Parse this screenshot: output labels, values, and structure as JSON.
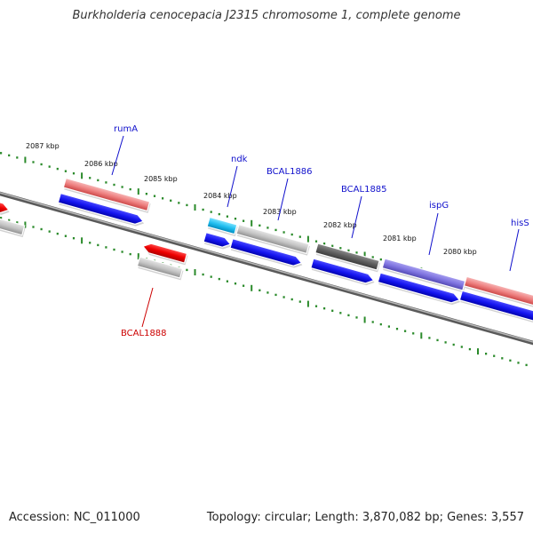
{
  "title": "Burkholderia cenocepacia J2315 chromosome 1, complete genome",
  "footer": {
    "accession": "Accession: NC_011000",
    "info": "Topology: circular; Length: 3,870,082 bp; Genes: 3,557"
  },
  "colors": {
    "backbone": "#808080",
    "ticks": "#2a8a2a",
    "forward_label": "#1010cc",
    "reverse_label": "#cc0000"
  },
  "kbp_labels": [
    "2087 kbp",
    "2086 kbp",
    "2085 kbp",
    "2084 kbp",
    "2083 kbp",
    "2082 kbp",
    "2081 kbp",
    "2080 kbp"
  ],
  "gene_labels": [
    {
      "text": "rumA",
      "strand": "forward"
    },
    {
      "text": "ndk",
      "strand": "forward"
    },
    {
      "text": "BCAL1886",
      "strand": "forward"
    },
    {
      "text": "BCAL1885",
      "strand": "forward"
    },
    {
      "text": "ispG",
      "strand": "forward"
    },
    {
      "text": "hisS",
      "strand": "forward"
    },
    {
      "text": "BCAL1888",
      "strand": "reverse"
    }
  ]
}
